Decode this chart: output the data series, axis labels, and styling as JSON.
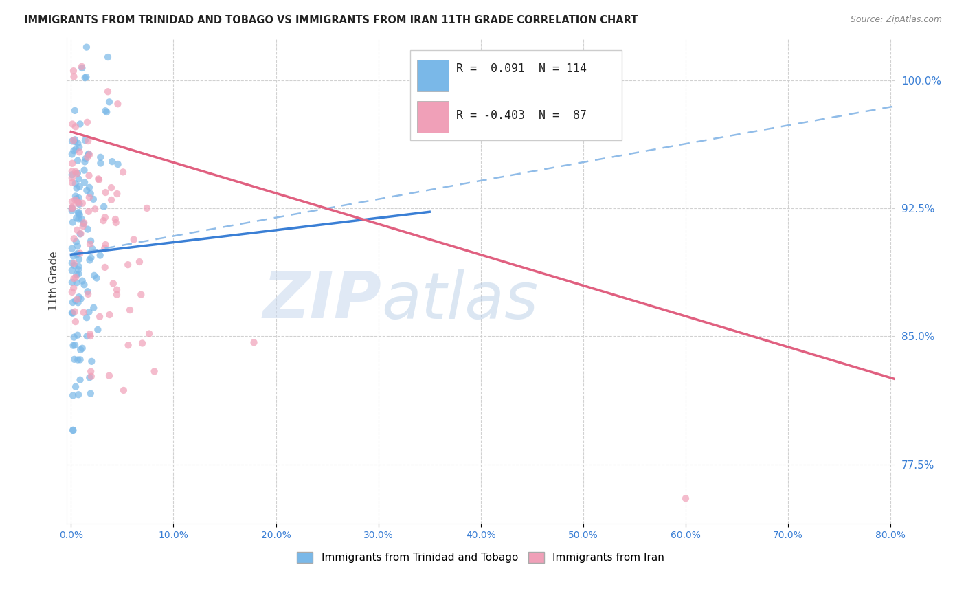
{
  "title": "IMMIGRANTS FROM TRINIDAD AND TOBAGO VS IMMIGRANTS FROM IRAN 11TH GRADE CORRELATION CHART",
  "source": "Source: ZipAtlas.com",
  "ylabel": "11th Grade",
  "ytick_vals": [
    77.5,
    85.0,
    92.5,
    100.0
  ],
  "ylim": [
    74.0,
    102.5
  ],
  "xlim": [
    -0.004,
    0.804
  ],
  "legend_R1": "0.091",
  "legend_N1": "114",
  "legend_R2": "-0.403",
  "legend_N2": "87",
  "color_tt": "#7ab8e8",
  "color_iran": "#f0a0b8",
  "color_tt_line_solid": "#3a7fd5",
  "color_tt_line_dashed": "#90bce8",
  "color_iran_line": "#e06080",
  "watermark_zip": "ZIP",
  "watermark_atlas": "atlas",
  "background_color": "#ffffff",
  "tt_line_x0": 0.0,
  "tt_line_y0": 89.8,
  "tt_line_x1": 0.35,
  "tt_line_y1": 92.3,
  "tt_line_dashed_x1": 0.804,
  "tt_line_dashed_y1": 98.5,
  "iran_line_x0": 0.0,
  "iran_line_y0": 97.0,
  "iran_line_x1": 0.804,
  "iran_line_y1": 82.5
}
